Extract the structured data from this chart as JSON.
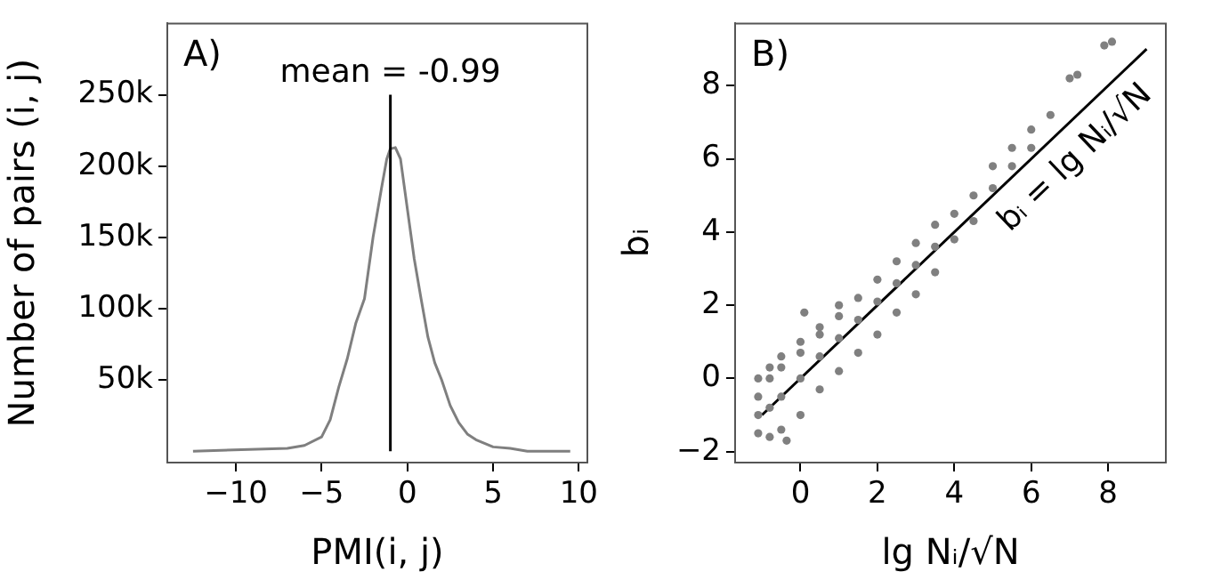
{
  "chart_data": [
    {
      "type": "line",
      "xlabel": "PMI(i, j)",
      "ylabel": "Number of pairs (i, j)",
      "color": "#7f7f7f",
      "x": [
        -12.5,
        -7,
        -6,
        -5,
        -4.5,
        -4,
        -3.5,
        -3,
        -2.5,
        -2,
        -1.5,
        -1.2,
        -1,
        -0.7,
        -0.4,
        0,
        0.4,
        0.8,
        1.2,
        1.6,
        2,
        2.5,
        3,
        3.5,
        4,
        5,
        6,
        7,
        9.5
      ],
      "values": [
        0,
        2000,
        4000,
        10000,
        22000,
        45000,
        65000,
        90000,
        107000,
        150000,
        185000,
        205000,
        212000,
        213000,
        205000,
        170000,
        135000,
        107000,
        80000,
        62000,
        50000,
        32000,
        20000,
        12000,
        8000,
        3000,
        2000,
        0,
        0
      ],
      "xlim": [
        -14,
        10.5
      ],
      "xticks": [
        {
          "value": -10,
          "label": "−10"
        },
        {
          "value": -5,
          "label": "−5"
        },
        0,
        5,
        10
      ],
      "ylim": [
        -8000,
        300000
      ],
      "yticks": [
        {
          "value": 50000,
          "label": "50k"
        },
        {
          "value": 100000,
          "label": "100k"
        },
        {
          "value": 150000,
          "label": "150k"
        },
        {
          "value": 200000,
          "label": "200k"
        },
        {
          "value": 250000,
          "label": "250k"
        }
      ],
      "ref_lines": [
        {
          "axis": "x",
          "value": -0.99,
          "label": "mean = -0.99",
          "color": "#000000"
        }
      ],
      "annotations": [
        "A)"
      ],
      "grid": false,
      "legend": false
    },
    {
      "type": "scatter",
      "xlabel": "lg Nᵢ/√N",
      "ylabel": "bᵢ",
      "series": [
        {
          "marker": "circle",
          "color": "#808080",
          "x": [
            -1.1,
            -1.1,
            -1.1,
            -1.1,
            -0.8,
            -0.8,
            -0.8,
            -0.8,
            -0.5,
            -0.5,
            -0.5,
            -0.5,
            -0.36,
            0,
            0,
            0,
            0,
            0.1,
            0.5,
            0.5,
            0.5,
            0.5,
            1,
            1,
            1,
            1,
            1.5,
            1.5,
            1.5,
            2,
            2,
            2,
            2.5,
            2.5,
            2.5,
            3,
            3,
            3,
            3.5,
            3.5,
            3.5,
            4,
            4,
            4.5,
            4.5,
            5,
            5,
            5.5,
            5.5,
            6,
            6,
            6.5,
            7,
            7.2,
            7.9,
            8.1
          ],
          "values": [
            -1.5,
            -1,
            -0.5,
            0,
            -1.6,
            -0.8,
            0,
            0.3,
            -1.4,
            -0.5,
            0.3,
            0.6,
            -1.7,
            -1,
            0,
            0.7,
            1,
            1.8,
            -0.3,
            0.6,
            1.2,
            1.4,
            0.2,
            1.1,
            1.7,
            2,
            0.7,
            1.6,
            2.2,
            1.2,
            2.1,
            2.7,
            1.8,
            2.6,
            3.2,
            2.3,
            3.1,
            3.7,
            2.9,
            3.6,
            4.2,
            3.8,
            4.5,
            4.3,
            5,
            5.2,
            5.8,
            5.8,
            6.3,
            6.3,
            6.8,
            7.2,
            8.2,
            8.3,
            9.1,
            9.2
          ]
        },
        {
          "type": "line",
          "name": "bᵢ = lg Nᵢ/√N",
          "color": "#000000",
          "x": [
            -1,
            9
          ],
          "values": [
            -1,
            9
          ]
        }
      ],
      "xlim": [
        -1.7,
        9.5
      ],
      "xticks": [
        0,
        2,
        4,
        6,
        8
      ],
      "ylim": [
        -2.3,
        9.7
      ],
      "yticks": [
        {
          "value": -2,
          "label": "−2"
        },
        0,
        2,
        4,
        6,
        8
      ],
      "annotations": [
        "B)"
      ],
      "grid": false,
      "legend": false
    }
  ]
}
